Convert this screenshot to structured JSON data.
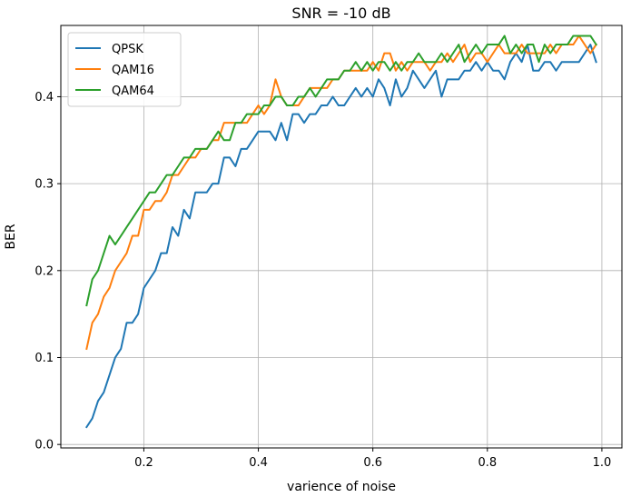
{
  "chart_data": {
    "type": "line",
    "title": "SNR = -10 dB",
    "xlabel": "varience of noise",
    "ylabel": "BER",
    "xlim": [
      0.055,
      1.035
    ],
    "ylim": [
      -0.004,
      0.482
    ],
    "grid": true,
    "legend_position": "top-left",
    "xticks": [
      0.2,
      0.4,
      0.6,
      0.8,
      1.0
    ],
    "xtick_labels": [
      "0.2",
      "0.4",
      "0.6",
      "0.8",
      "1.0"
    ],
    "yticks": [
      0.0,
      0.1,
      0.2,
      0.3,
      0.4
    ],
    "ytick_labels": [
      "0.0",
      "0.1",
      "0.2",
      "0.3",
      "0.4"
    ],
    "x": [
      0.1,
      0.11,
      0.12,
      0.13,
      0.14,
      0.15,
      0.16,
      0.17,
      0.18,
      0.19,
      0.2,
      0.21,
      0.22,
      0.23,
      0.24,
      0.25,
      0.26,
      0.27,
      0.28,
      0.29,
      0.3,
      0.31,
      0.32,
      0.33,
      0.34,
      0.35,
      0.36,
      0.37,
      0.38,
      0.39,
      0.4,
      0.41,
      0.42,
      0.43,
      0.44,
      0.45,
      0.46,
      0.47,
      0.48,
      0.49,
      0.5,
      0.51,
      0.52,
      0.53,
      0.54,
      0.55,
      0.56,
      0.57,
      0.58,
      0.59,
      0.6,
      0.61,
      0.62,
      0.63,
      0.64,
      0.65,
      0.66,
      0.67,
      0.68,
      0.69,
      0.7,
      0.71,
      0.72,
      0.73,
      0.74,
      0.75,
      0.76,
      0.77,
      0.78,
      0.79,
      0.8,
      0.81,
      0.82,
      0.83,
      0.84,
      0.85,
      0.86,
      0.87,
      0.88,
      0.89,
      0.9,
      0.91,
      0.92,
      0.93,
      0.94,
      0.95,
      0.96,
      0.97,
      0.98,
      0.99
    ],
    "series": [
      {
        "name": "QPSK",
        "color": "#1f77b4",
        "values": [
          0.02,
          0.03,
          0.05,
          0.06,
          0.08,
          0.1,
          0.11,
          0.14,
          0.14,
          0.15,
          0.18,
          0.19,
          0.2,
          0.22,
          0.22,
          0.25,
          0.24,
          0.27,
          0.26,
          0.29,
          0.29,
          0.29,
          0.3,
          0.3,
          0.33,
          0.33,
          0.32,
          0.34,
          0.34,
          0.35,
          0.36,
          0.36,
          0.36,
          0.35,
          0.37,
          0.35,
          0.38,
          0.38,
          0.37,
          0.38,
          0.38,
          0.39,
          0.39,
          0.4,
          0.39,
          0.39,
          0.4,
          0.41,
          0.4,
          0.41,
          0.4,
          0.42,
          0.41,
          0.39,
          0.42,
          0.4,
          0.41,
          0.43,
          0.42,
          0.41,
          0.42,
          0.43,
          0.4,
          0.42,
          0.42,
          0.42,
          0.43,
          0.43,
          0.44,
          0.43,
          0.44,
          0.43,
          0.43,
          0.42,
          0.44,
          0.45,
          0.44,
          0.46,
          0.43,
          0.43,
          0.44,
          0.44,
          0.43,
          0.44,
          0.44,
          0.44,
          0.44,
          0.45,
          0.46,
          0.44
        ]
      },
      {
        "name": "QAM16",
        "color": "#ff7f0e",
        "values": [
          0.11,
          0.14,
          0.15,
          0.17,
          0.18,
          0.2,
          0.21,
          0.22,
          0.24,
          0.24,
          0.27,
          0.27,
          0.28,
          0.28,
          0.29,
          0.31,
          0.31,
          0.32,
          0.33,
          0.33,
          0.34,
          0.34,
          0.35,
          0.35,
          0.37,
          0.37,
          0.37,
          0.37,
          0.37,
          0.38,
          0.39,
          0.38,
          0.39,
          0.42,
          0.4,
          0.39,
          0.39,
          0.39,
          0.4,
          0.41,
          0.41,
          0.41,
          0.41,
          0.42,
          0.42,
          0.43,
          0.43,
          0.43,
          0.43,
          0.43,
          0.44,
          0.43,
          0.45,
          0.45,
          0.43,
          0.44,
          0.43,
          0.44,
          0.44,
          0.44,
          0.43,
          0.44,
          0.44,
          0.45,
          0.44,
          0.45,
          0.46,
          0.44,
          0.45,
          0.45,
          0.44,
          0.45,
          0.46,
          0.45,
          0.45,
          0.45,
          0.46,
          0.45,
          0.45,
          0.45,
          0.45,
          0.46,
          0.45,
          0.46,
          0.46,
          0.46,
          0.47,
          0.46,
          0.45,
          0.46
        ]
      },
      {
        "name": "QAM64",
        "color": "#2ca02c",
        "values": [
          0.16,
          0.19,
          0.2,
          0.22,
          0.24,
          0.23,
          0.24,
          0.25,
          0.26,
          0.27,
          0.28,
          0.29,
          0.29,
          0.3,
          0.31,
          0.31,
          0.32,
          0.33,
          0.33,
          0.34,
          0.34,
          0.34,
          0.35,
          0.36,
          0.35,
          0.35,
          0.37,
          0.37,
          0.38,
          0.38,
          0.38,
          0.39,
          0.39,
          0.4,
          0.4,
          0.39,
          0.39,
          0.4,
          0.4,
          0.41,
          0.4,
          0.41,
          0.42,
          0.42,
          0.42,
          0.43,
          0.43,
          0.44,
          0.43,
          0.44,
          0.43,
          0.44,
          0.44,
          0.43,
          0.44,
          0.43,
          0.44,
          0.44,
          0.45,
          0.44,
          0.44,
          0.44,
          0.45,
          0.44,
          0.45,
          0.46,
          0.44,
          0.45,
          0.46,
          0.45,
          0.46,
          0.46,
          0.46,
          0.47,
          0.45,
          0.46,
          0.45,
          0.46,
          0.46,
          0.44,
          0.46,
          0.45,
          0.46,
          0.46,
          0.46,
          0.47,
          0.47,
          0.47,
          0.47,
          0.46
        ]
      }
    ]
  }
}
